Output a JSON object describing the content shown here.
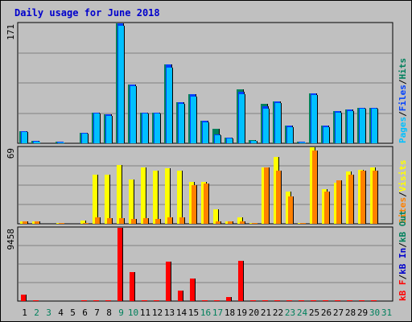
{
  "chart_data": {
    "type": "bar",
    "title": "Daily usage for June 2018",
    "days": [
      "1",
      "2",
      "3",
      "4",
      "5",
      "6",
      "7",
      "8",
      "9",
      "10",
      "11",
      "12",
      "13",
      "14",
      "15",
      "16",
      "17",
      "18",
      "19",
      "20",
      "21",
      "22",
      "23",
      "24",
      "25",
      "26",
      "27",
      "28",
      "29",
      "30",
      "31"
    ],
    "weekend_days": [
      "2",
      "3",
      "9",
      "10",
      "16",
      "17",
      "23",
      "24",
      "30",
      "31"
    ],
    "colors": {
      "hits": "#00805c",
      "files": "#0040ff",
      "pages": "#00c0ff",
      "visits": "#ffff00",
      "sites": "#ff8000",
      "kb_in": "#0000cc",
      "kb_out": "#00805c",
      "kb_f": "#ff0000",
      "weekday_label": "#000000",
      "weekend_label": "#00805c",
      "title": "#0000cc"
    },
    "panels": [
      {
        "id": "hits-files-pages",
        "ymax": 171,
        "ymax_label": "171",
        "legend": [
          {
            "key": "pages",
            "text": "Pages"
          },
          {
            "key": "files",
            "text": "Files"
          },
          {
            "key": "hits",
            "text": "Hits"
          }
        ],
        "series": [
          {
            "name": "Hits",
            "key": "hits",
            "values": [
              17,
              4,
              0,
              2,
              0,
              15,
              44,
              41,
              171,
              84,
              44,
              44,
              112,
              58,
              70,
              32,
              21,
              8,
              77,
              5,
              56,
              60,
              25,
              2,
              71,
              25,
              46,
              48,
              51,
              51,
              0
            ]
          },
          {
            "name": "Files",
            "key": "files",
            "values": [
              17,
              3,
              0,
              2,
              0,
              15,
              44,
              41,
              171,
              84,
              44,
              44,
              112,
              58,
              70,
              32,
              13,
              8,
              73,
              4,
              53,
              60,
              25,
              2,
              71,
              25,
              46,
              48,
              51,
              51,
              0
            ]
          },
          {
            "name": "Pages",
            "key": "pages",
            "values": [
              16,
              2,
              0,
              1,
              0,
              14,
              42,
              39,
              167,
              81,
              42,
              42,
              108,
              56,
              67,
              30,
              12,
              7,
              70,
              3,
              49,
              57,
              23,
              1,
              69,
              23,
              44,
              46,
              49,
              49,
              0
            ]
          }
        ]
      },
      {
        "id": "visits-sites",
        "ymax": 69,
        "ymax_label": "69",
        "legend": [
          {
            "key": "sites",
            "text": "Sites"
          },
          {
            "key": "visits",
            "text": "Visits"
          }
        ],
        "series": [
          {
            "name": "Visits",
            "key": "visits",
            "values": [
              2,
              2,
              0,
              1,
              0,
              3,
              44,
              44,
              53,
              40,
              51,
              48,
              50,
              48,
              38,
              38,
              13,
              2,
              6,
              1,
              51,
              60,
              29,
              1,
              69,
              31,
              37,
              47,
              49,
              51,
              0
            ]
          },
          {
            "name": "Sites",
            "key": "sites",
            "values": [
              2,
              2,
              0,
              1,
              0,
              1,
              6,
              5,
              5,
              4,
              5,
              4,
              6,
              6,
              35,
              36,
              2,
              2,
              2,
              1,
              51,
              48,
              25,
              1,
              66,
              29,
              39,
              44,
              48,
              48,
              0
            ]
          }
        ]
      },
      {
        "id": "kbytes",
        "ymax": 9458,
        "ymax_label": "9458",
        "legend": [
          {
            "key": "kb_f",
            "text": "kB F"
          },
          {
            "key": "kb_in",
            "text": "kB In"
          },
          {
            "key": "kb_out",
            "text": "kB Out"
          }
        ],
        "series": [
          {
            "name": "kB F",
            "key": "kb_f",
            "values": [
              780,
              60,
              0,
              40,
              0,
              60,
              150,
              100,
              9458,
              3700,
              90,
              90,
              5100,
              1300,
              2900,
              90,
              90,
              500,
              5200,
              60,
              60,
              60,
              60,
              60,
              60,
              60,
              60,
              60,
              60,
              60,
              0
            ]
          }
        ]
      }
    ]
  }
}
